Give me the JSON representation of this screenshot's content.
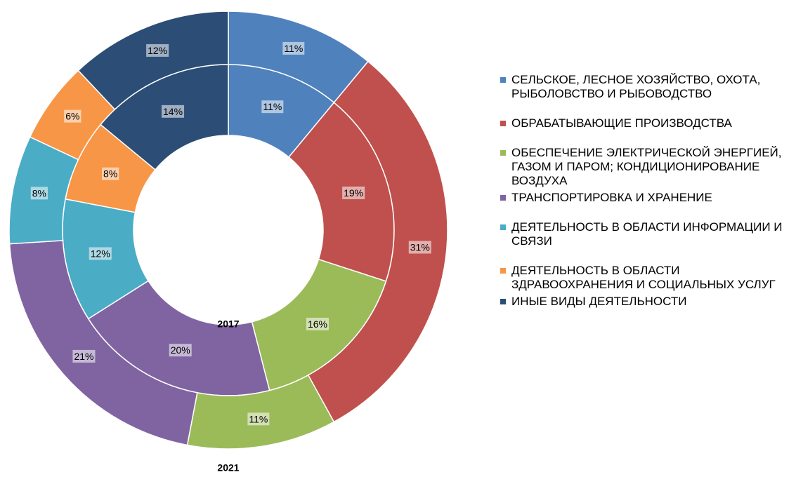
{
  "chart_data": {
    "type": "donut",
    "categories": [
      "СЕЛЬСКОЕ, ЛЕСНОЕ ХОЗЯЙСТВО, ОХОТА, РЫБОЛОВСТВО И РЫБОВОДСТВО",
      "ОБРАБАТЫВАЮЩИЕ ПРОИЗВОДСТВА",
      "ОБЕСПЕЧЕНИЕ ЭЛЕКТРИЧЕСКОЙ ЭНЕРГИЕЙ, ГАЗОМ И ПАРОМ; КОНДИЦИОНИРОВАНИЕ ВОЗДУХА",
      "ТРАНСПОРТИРОВКА И ХРАНЕНИЕ",
      "ДЕЯТЕЛЬНОСТЬ В ОБЛАСТИ ИНФОРМАЦИИ И СВЯЗИ",
      "ДЕЯТЕЛЬНОСТЬ В ОБЛАСТИ ЗДРАВООХРАНЕНИЯ И СОЦИАЛЬНЫХ УСЛУГ",
      "ИНЫЕ ВИДЫ ДЕЯТЕЛЬНОСТИ"
    ],
    "colors": [
      "#4f81bd",
      "#c0504d",
      "#9bbb59",
      "#8064a2",
      "#4bacc6",
      "#f79646",
      "#2c4d75"
    ],
    "series": [
      {
        "name": "2017",
        "values": [
          11,
          19,
          16,
          20,
          12,
          8,
          14
        ],
        "value_labels": [
          "11%",
          "19%",
          "16%",
          "20%",
          "12%",
          "8%",
          "14%"
        ]
      },
      {
        "name": "2021",
        "values": [
          11,
          31,
          11,
          21,
          8,
          6,
          12
        ],
        "value_labels": [
          "11%",
          "31%",
          "11%",
          "21%",
          "8%",
          "6%",
          "12%"
        ]
      }
    ],
    "legend": "right"
  }
}
